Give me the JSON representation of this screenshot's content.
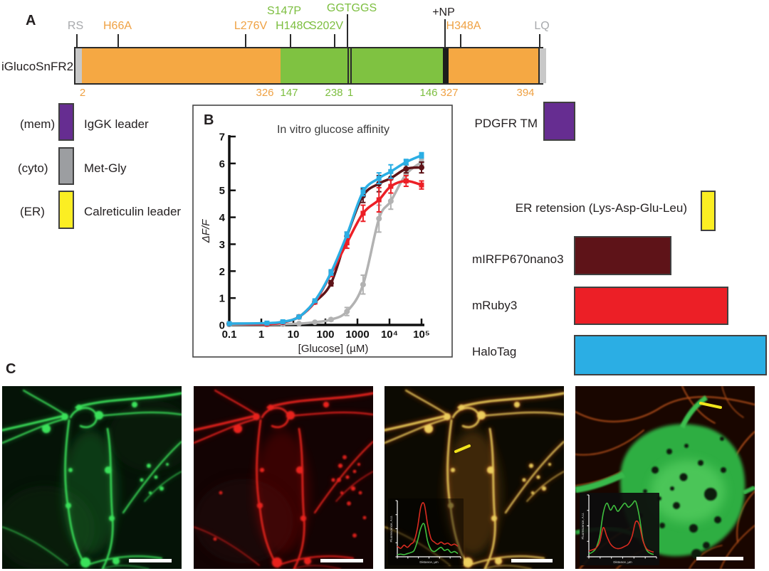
{
  "colors": {
    "orange": "#F5A843",
    "green": "#7FC241",
    "purple": "#662D91",
    "gray": "#9C9EA1",
    "yellow": "#FBEE23",
    "dark_red": "#5E1318",
    "red": "#EC1F26",
    "cyan": "#2BAEE4",
    "gray_curve": "#B2B2B2"
  },
  "panelA": {
    "label": "A",
    "construct_name": "iGlucoSnFR2",
    "annotations": [
      {
        "text": "RS",
        "color": "gray"
      },
      {
        "text": "H66A",
        "color": "orange"
      },
      {
        "text": "L276V",
        "color": "orange"
      },
      {
        "text": "S147P",
        "color": "green"
      },
      {
        "text": "H148C",
        "color": "green"
      },
      {
        "text": "S202V",
        "color": "green"
      },
      {
        "text": "GGTGGS",
        "color": "green"
      },
      {
        "text": "+NP",
        "color": "black"
      },
      {
        "text": "H348A",
        "color": "orange"
      },
      {
        "text": "LQ",
        "color": "gray"
      }
    ],
    "residue_numbers": [
      {
        "text": "2",
        "color": "orange"
      },
      {
        "text": "326",
        "color": "orange"
      },
      {
        "text": "147",
        "color": "green"
      },
      {
        "text": "238",
        "color": "green"
      },
      {
        "text": "1",
        "color": "green"
      },
      {
        "text": "146",
        "color": "green"
      },
      {
        "text": "327",
        "color": "orange"
      },
      {
        "text": "394",
        "color": "orange"
      }
    ]
  },
  "legend_left": {
    "items": [
      {
        "prefix": "(mem)",
        "label": "IgGK leader",
        "color": "purple"
      },
      {
        "prefix": "(cyto)",
        "label": "Met-Gly",
        "color": "gray"
      },
      {
        "prefix": "(ER)",
        "label": "Calreticulin leader",
        "color": "yellow"
      }
    ]
  },
  "legend_right": {
    "items": [
      {
        "label": "PDGFR TM",
        "color": "purple"
      },
      {
        "label": "ER retension (Lys-Asp-Glu-Leu)",
        "color": "yellow"
      },
      {
        "label": "mIRFP670nano3",
        "color": "dark_red"
      },
      {
        "label": "mRuby3",
        "color": "red"
      },
      {
        "label": "HaloTag",
        "color": "cyan"
      }
    ]
  },
  "panelB": {
    "label": "B"
  },
  "panelC": {
    "label": "C"
  },
  "chart_data": [
    {
      "type": "line",
      "title": "In vitro glucose affinity",
      "xlabel": "[Glucose] (µM)",
      "ylabel": "ΔF/F",
      "x_scale": "log",
      "xlim": [
        0.1,
        100000
      ],
      "ylim": [
        0,
        7
      ],
      "y_ticks": [
        0,
        1,
        2,
        3,
        4,
        5,
        6,
        7
      ],
      "x_ticks": [
        0.1,
        1,
        10,
        100,
        1000,
        10000,
        100000
      ],
      "x_tick_labels": [
        "0.1",
        "1",
        "10",
        "100",
        "1000",
        "10⁴",
        "10⁵"
      ],
      "grid": false,
      "legend_position": "none",
      "x": [
        0.1,
        1.5,
        4.7,
        15,
        47,
        150,
        470,
        1500,
        4700,
        11000,
        33000,
        100000
      ],
      "series": [
        {
          "name": "gray",
          "color": "#B2B2B2",
          "marker": "circle",
          "values": [
            0.02,
            0.02,
            0.03,
            0.05,
            0.1,
            0.2,
            0.5,
            1.5,
            3.95,
            4.6,
            5.6,
            6.05
          ],
          "errors": [
            0,
            0,
            0,
            0,
            0,
            0.05,
            0.15,
            0.35,
            0.5,
            0.3,
            0.2,
            0.1
          ]
        },
        {
          "name": "dark-red",
          "color": "#5E1318",
          "marker": "circle",
          "values": [
            0.05,
            0.05,
            0.1,
            0.3,
            0.85,
            1.55,
            3.3,
            4.8,
            5.25,
            5.45,
            5.8,
            5.85
          ],
          "errors": [
            0,
            0,
            0,
            0,
            0,
            0.1,
            0.15,
            0.25,
            0.3,
            0.3,
            0.15,
            0.2
          ]
        },
        {
          "name": "red",
          "color": "#EC1F26",
          "marker": "square",
          "values": [
            0.05,
            0.03,
            0.1,
            0.3,
            0.85,
            1.9,
            3.05,
            4.15,
            4.65,
            5.15,
            5.35,
            5.2
          ],
          "errors": [
            0,
            0,
            0,
            0,
            0,
            0.1,
            0.2,
            0.3,
            0.45,
            0.25,
            0.2,
            0.15
          ]
        },
        {
          "name": "cyan",
          "color": "#2BAEE4",
          "marker": "square",
          "values": [
            0.05,
            0.07,
            0.12,
            0.3,
            0.9,
            1.95,
            3.35,
            4.95,
            5.45,
            5.7,
            6.05,
            6.3
          ],
          "errors": [
            0,
            0,
            0,
            0,
            0,
            0.1,
            0.1,
            0.15,
            0.2,
            0.25,
            0.1,
            0.1
          ]
        }
      ]
    },
    {
      "type": "line",
      "context": "inset line profile, merged image 3",
      "xlabel": "Distance, µm",
      "ylabel": "Fluorescence, A.U.",
      "series": [
        {
          "name": "red",
          "color": "#D92B20",
          "values": [
            0.2,
            0.16,
            0.22,
            0.18,
            0.24,
            0.3,
            0.55,
            0.95,
            1.0,
            0.62,
            0.35,
            0.28,
            0.24,
            0.28,
            0.24,
            0.26,
            0.22,
            0.24,
            0.2
          ]
        },
        {
          "name": "green",
          "color": "#3FBF3F",
          "values": [
            0.04,
            0.05,
            0.04,
            0.06,
            0.08,
            0.12,
            0.3,
            0.55,
            0.62,
            0.3,
            0.14,
            0.1,
            0.14,
            0.18,
            0.12,
            0.14,
            0.08,
            0.1,
            0.06
          ]
        }
      ]
    },
    {
      "type": "line",
      "context": "inset line profile, merged image 4",
      "xlabel": "Distance, µm",
      "ylabel": "Fluorescence, A.U.",
      "series": [
        {
          "name": "green",
          "color": "#3FBF3F",
          "values": [
            0.05,
            0.08,
            0.15,
            0.35,
            0.75,
            0.92,
            0.8,
            0.88,
            0.78,
            0.85,
            0.92,
            0.85,
            0.9,
            0.95,
            0.7,
            0.3,
            0.12,
            0.06,
            0.04
          ]
        },
        {
          "name": "red",
          "color": "#D92B20",
          "values": [
            0.1,
            0.12,
            0.15,
            0.25,
            0.5,
            0.35,
            0.22,
            0.16,
            0.14,
            0.15,
            0.18,
            0.22,
            0.35,
            0.6,
            0.55,
            0.28,
            0.14,
            0.1,
            0.08
          ]
        }
      ]
    }
  ]
}
